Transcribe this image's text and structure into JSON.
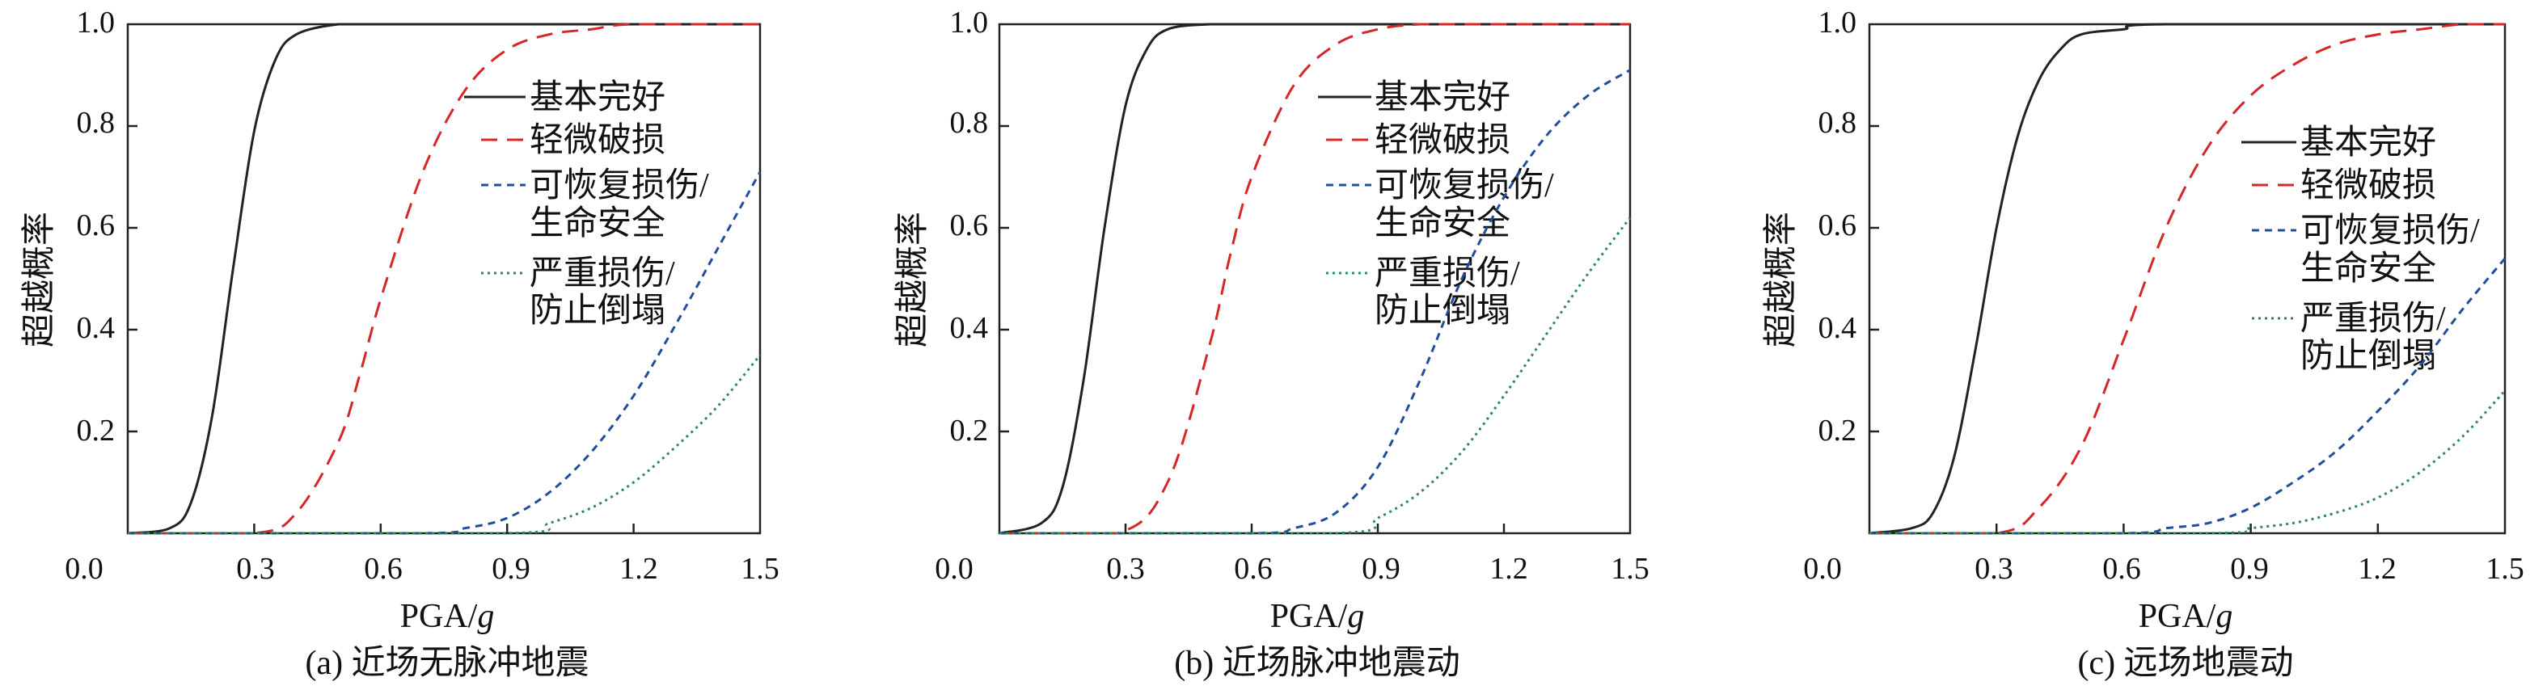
{
  "chart_data": [
    {
      "type": "line",
      "caption": "(a) 近场无脉冲地震",
      "xlabel_main": "PGA/",
      "xlabel_italic": "g",
      "ylabel": "超越概率",
      "xlim": [
        0.0,
        1.5
      ],
      "ylim": [
        0.0,
        1.0
      ],
      "xticks": [
        "0.0",
        "0.3",
        "0.6",
        "0.9",
        "1.2",
        "1.5"
      ],
      "yticks": [
        "0.2",
        "0.4",
        "0.6",
        "0.8",
        "1.0"
      ],
      "legend": [
        "基本完好",
        "轻微破损",
        "可恢复损伤/",
        "生命安全",
        "严重损伤/",
        "防止倒塌"
      ],
      "legend_position": "upper-right",
      "series": [
        {
          "style": "solid",
          "color": "#222222",
          "x": [
            0.0,
            0.1,
            0.15,
            0.2,
            0.25,
            0.3,
            0.35,
            0.4,
            0.5,
            0.6,
            1.5
          ],
          "y": [
            0.0,
            0.01,
            0.06,
            0.23,
            0.52,
            0.79,
            0.93,
            0.98,
            1.0,
            1.0,
            1.0
          ]
        },
        {
          "style": "dashed",
          "color": "#d62728",
          "x": [
            0.0,
            0.3,
            0.4,
            0.5,
            0.55,
            0.6,
            0.7,
            0.8,
            0.9,
            1.0,
            1.1,
            1.2,
            1.5
          ],
          "y": [
            0.0,
            0.0,
            0.04,
            0.18,
            0.31,
            0.46,
            0.71,
            0.87,
            0.95,
            0.98,
            0.99,
            1.0,
            1.0
          ]
        },
        {
          "style": "dotted-dash",
          "color": "#1f4e9c",
          "x": [
            0.0,
            0.7,
            0.8,
            0.9,
            1.0,
            1.1,
            1.2,
            1.3,
            1.4,
            1.5
          ],
          "y": [
            0.0,
            0.0,
            0.01,
            0.03,
            0.08,
            0.16,
            0.27,
            0.41,
            0.56,
            0.71
          ]
        },
        {
          "style": "dotted",
          "color": "#2e8b57",
          "x": [
            0.0,
            0.9,
            1.0,
            1.1,
            1.2,
            1.3,
            1.4,
            1.5
          ],
          "y": [
            0.0,
            0.0,
            0.02,
            0.05,
            0.1,
            0.17,
            0.25,
            0.35
          ]
        }
      ]
    },
    {
      "type": "line",
      "caption": "(b) 近场脉冲地震动",
      "xlabel_main": "PGA/",
      "xlabel_italic": "g",
      "ylabel": "超越概率",
      "xlim": [
        0.0,
        1.5
      ],
      "ylim": [
        0.0,
        1.0
      ],
      "xticks": [
        "0.0",
        "0.3",
        "0.6",
        "0.9",
        "1.2",
        "1.5"
      ],
      "yticks": [
        "0.2",
        "0.4",
        "0.6",
        "0.8",
        "1.0"
      ],
      "legend": [
        "基本完好",
        "轻微破损",
        "可恢复损伤/",
        "生命安全",
        "严重损伤/",
        "防止倒塌"
      ],
      "legend_position": "upper-right",
      "series": [
        {
          "style": "solid",
          "color": "#222222",
          "x": [
            0.0,
            0.1,
            0.15,
            0.2,
            0.25,
            0.3,
            0.35,
            0.4,
            0.5,
            0.6,
            1.5
          ],
          "y": [
            0.0,
            0.02,
            0.09,
            0.3,
            0.6,
            0.84,
            0.95,
            0.99,
            1.0,
            1.0,
            1.0
          ]
        },
        {
          "style": "dashed",
          "color": "#d62728",
          "x": [
            0.0,
            0.28,
            0.4,
            0.5,
            0.55,
            0.6,
            0.7,
            0.8,
            0.9,
            1.0,
            1.1,
            1.5
          ],
          "y": [
            0.0,
            0.0,
            0.1,
            0.37,
            0.55,
            0.7,
            0.88,
            0.96,
            0.99,
            1.0,
            1.0,
            1.0
          ]
        },
        {
          "style": "dotted-dash",
          "color": "#1f4e9c",
          "x": [
            0.0,
            0.6,
            0.7,
            0.8,
            0.9,
            1.0,
            1.1,
            1.2,
            1.3,
            1.4,
            1.5
          ],
          "y": [
            0.0,
            0.0,
            0.01,
            0.04,
            0.13,
            0.3,
            0.5,
            0.66,
            0.78,
            0.86,
            0.91
          ]
        },
        {
          "style": "dotted",
          "color": "#2e8b57",
          "x": [
            0.0,
            0.8,
            0.9,
            1.0,
            1.1,
            1.2,
            1.3,
            1.4,
            1.5
          ],
          "y": [
            0.0,
            0.0,
            0.03,
            0.08,
            0.16,
            0.27,
            0.39,
            0.51,
            0.62
          ]
        }
      ]
    },
    {
      "type": "line",
      "caption": "(c) 远场地震动",
      "xlabel_main": "PGA/",
      "xlabel_italic": "g",
      "ylabel": "超越概率",
      "xlim": [
        0.0,
        1.5
      ],
      "ylim": [
        0.0,
        1.0
      ],
      "xticks": [
        "0.0",
        "0.3",
        "0.6",
        "0.9",
        "1.2",
        "1.5"
      ],
      "yticks": [
        "0.2",
        "0.4",
        "0.6",
        "0.8",
        "1.0"
      ],
      "legend": [
        "基本完好",
        "轻微破损",
        "可恢复损伤/",
        "生命安全",
        "严重损伤/",
        "防止倒塌"
      ],
      "legend_position": "right",
      "series": [
        {
          "style": "solid",
          "color": "#222222",
          "x": [
            0.0,
            0.1,
            0.15,
            0.2,
            0.25,
            0.3,
            0.35,
            0.4,
            0.45,
            0.5,
            0.6,
            0.7,
            1.5
          ],
          "y": [
            0.0,
            0.01,
            0.04,
            0.15,
            0.36,
            0.6,
            0.78,
            0.89,
            0.95,
            0.98,
            0.99,
            1.0,
            1.0
          ]
        },
        {
          "style": "dashed",
          "color": "#d62728",
          "x": [
            0.0,
            0.3,
            0.4,
            0.5,
            0.6,
            0.7,
            0.8,
            0.9,
            1.0,
            1.1,
            1.2,
            1.3,
            1.4,
            1.5
          ],
          "y": [
            0.0,
            0.0,
            0.05,
            0.17,
            0.38,
            0.6,
            0.76,
            0.86,
            0.92,
            0.96,
            0.98,
            0.99,
            1.0,
            1.0
          ]
        },
        {
          "style": "dotted-dash",
          "color": "#1f4e9c",
          "x": [
            0.0,
            0.6,
            0.7,
            0.8,
            0.9,
            1.0,
            1.1,
            1.2,
            1.3,
            1.4,
            1.5
          ],
          "y": [
            0.0,
            0.0,
            0.01,
            0.02,
            0.05,
            0.1,
            0.16,
            0.24,
            0.33,
            0.44,
            0.54
          ]
        },
        {
          "style": "dotted",
          "color": "#2e8b57",
          "x": [
            0.0,
            0.8,
            0.9,
            1.0,
            1.1,
            1.2,
            1.3,
            1.4,
            1.5
          ],
          "y": [
            0.0,
            0.0,
            0.01,
            0.02,
            0.04,
            0.07,
            0.12,
            0.19,
            0.28
          ]
        }
      ]
    }
  ]
}
